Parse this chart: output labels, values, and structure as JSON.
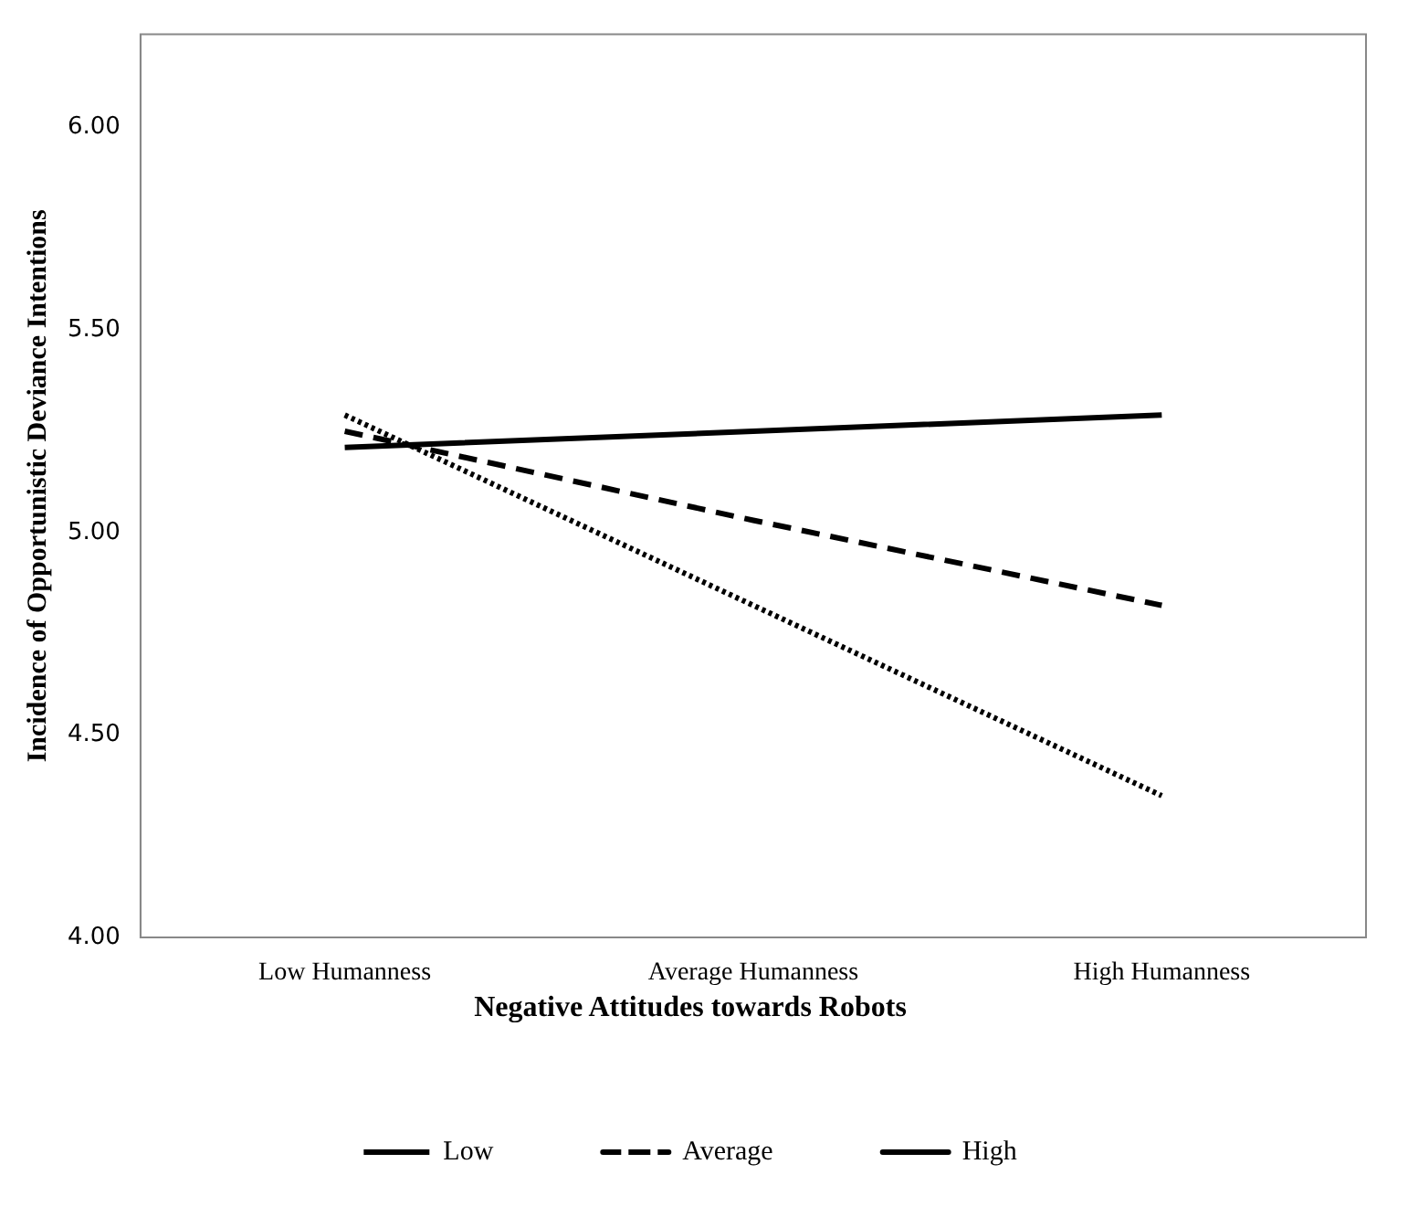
{
  "chart_data": {
    "type": "line",
    "ylabel": "Incidence of Opportunistic Deviance Intentions",
    "legend_title": "Negative Attitudes towards Robots",
    "legend": "bottom",
    "marker": "none",
    "categories": [
      "Low Humanness",
      "Average Humanness",
      "High Humanness"
    ],
    "series": [
      {
        "name": "Low",
        "color": "#000000",
        "line_style": "dotted",
        "values": [
          5.29,
          4.82,
          4.35
        ]
      },
      {
        "name": "Average",
        "color": "#000000",
        "line_style": "dashed",
        "values": [
          5.25,
          5.03,
          4.82
        ]
      },
      {
        "name": "High",
        "color": "#000000",
        "line_style": "solid",
        "values": [
          5.21,
          5.25,
          5.29
        ]
      }
    ],
    "ylim": [
      4.0,
      6.23
    ],
    "yticks": [
      {
        "value": 4,
        "label": "4.00"
      },
      {
        "value": 4.5,
        "label": "4.50"
      },
      {
        "value": 5,
        "label": "5.00"
      },
      {
        "value": 5.5,
        "label": "5.50"
      },
      {
        "value": 6,
        "label": "6.00"
      }
    ]
  }
}
